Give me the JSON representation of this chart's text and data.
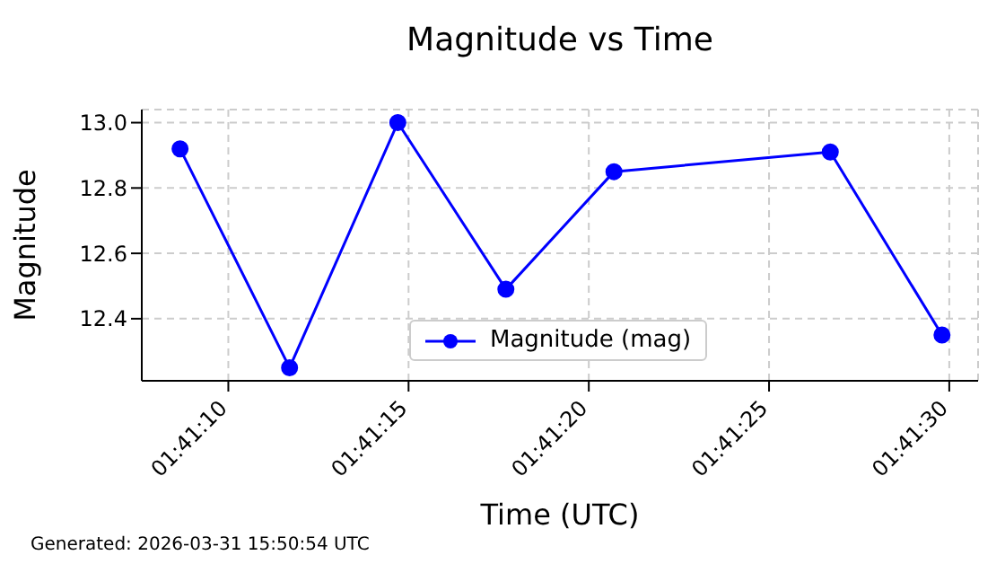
{
  "chart_data": {
    "type": "line",
    "title": "Magnitude vs Time",
    "xlabel": "Time (UTC)",
    "ylabel": "Magnitude",
    "annotations": [
      "Generated: 2026-03-31 15:50:54 UTC"
    ],
    "x": [
      1.685739,
      1.686583,
      1.687417,
      1.68825,
      1.689083,
      1.69075,
      1.691611
    ],
    "series": [
      {
        "name": "Magnitude (mag)",
        "color": "#0000ff",
        "values": [
          12.92,
          12.25,
          13.0,
          12.49,
          12.85,
          12.91,
          12.35
        ]
      }
    ],
    "xlim": [
      1.685444,
      1.691889
    ],
    "xticks": [
      {
        "value": 1.686111,
        "label": "01:41:10"
      },
      {
        "value": 1.6875,
        "label": "01:41:15"
      },
      {
        "value": 1.688889,
        "label": "01:41:20"
      },
      {
        "value": 1.690278,
        "label": "01:41:25"
      },
      {
        "value": 1.691667,
        "label": "01:41:30"
      }
    ],
    "ylim": [
      12.21,
      13.04
    ],
    "yticks": [
      12.4,
      12.6,
      12.8,
      {
        "value": 13.0,
        "label": "13.0"
      }
    ],
    "grid": true,
    "legend": "bottom",
    "marker": "circle",
    "line_style": "solid"
  }
}
